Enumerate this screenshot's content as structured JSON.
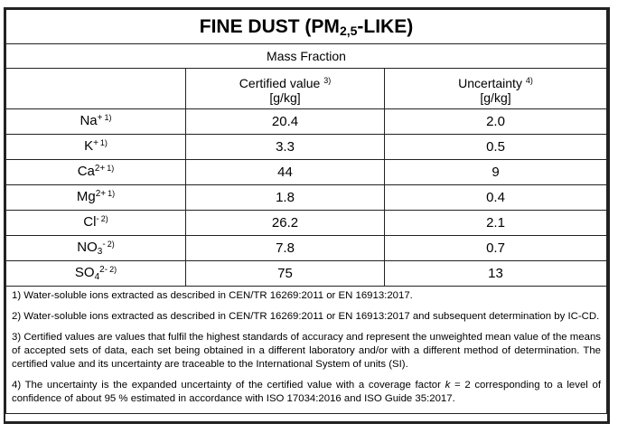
{
  "title": {
    "main": "FINE DUST (PM",
    "sub": "2,5",
    "tail": "-LIKE)"
  },
  "mass_fraction": "Mass Fraction",
  "columns": {
    "certified": {
      "label": "Certified value",
      "note": "3)",
      "unit": "[g/kg]"
    },
    "uncertainty": {
      "label": "Uncertainty",
      "note": "4)",
      "unit": "[g/kg]"
    }
  },
  "rows": [
    {
      "base": "Na",
      "sub": "",
      "charge": "+",
      "note": "1)",
      "value": "20.4",
      "uncertainty": "2.0"
    },
    {
      "base": "K",
      "sub": "",
      "charge": "+",
      "note": "1)",
      "value": "3.3",
      "uncertainty": "0.5"
    },
    {
      "base": "Ca",
      "sub": "",
      "charge": "2+",
      "note": "1)",
      "value": "44",
      "uncertainty": "9"
    },
    {
      "base": "Mg",
      "sub": "",
      "charge": "2+",
      "note": "1)",
      "value": "1.8",
      "uncertainty": "0.4"
    },
    {
      "base": "Cl",
      "sub": "",
      "charge": "-",
      "note": "2)",
      "value": "26.2",
      "uncertainty": "2.1"
    },
    {
      "base": "NO",
      "sub": "3",
      "charge": "-",
      "note": "2)",
      "value": "7.8",
      "uncertainty": "0.7"
    },
    {
      "base": "SO",
      "sub": "4",
      "charge": "2-",
      "note": "2)",
      "value": "75",
      "uncertainty": "13"
    }
  ],
  "footnotes": {
    "n1": "1) Water-soluble ions extracted as described in CEN/TR 16269:2011 or EN 16913:2017.",
    "n2": "2) Water-soluble ions extracted as described in CEN/TR 16269:2011 or EN 16913:2017 and subsequent determination by IC-CD.",
    "n3": "3) Certified values are values that fulfil the highest standards of accuracy and represent the unweighted mean value of the means of accepted sets of data, each set being obtained in a different laboratory and/or with a different method of determination. The certified value and its uncertainty are traceable to the International System of units (SI).",
    "n4a": "4) The uncertainty is the expanded uncertainty of the certified value with a coverage factor ",
    "n4k": "k",
    "n4b": " = 2 corresponding to a level of confidence of about 95 % estimated in accordance with ISO 17034:2016 and ISO Guide 35:2017."
  }
}
